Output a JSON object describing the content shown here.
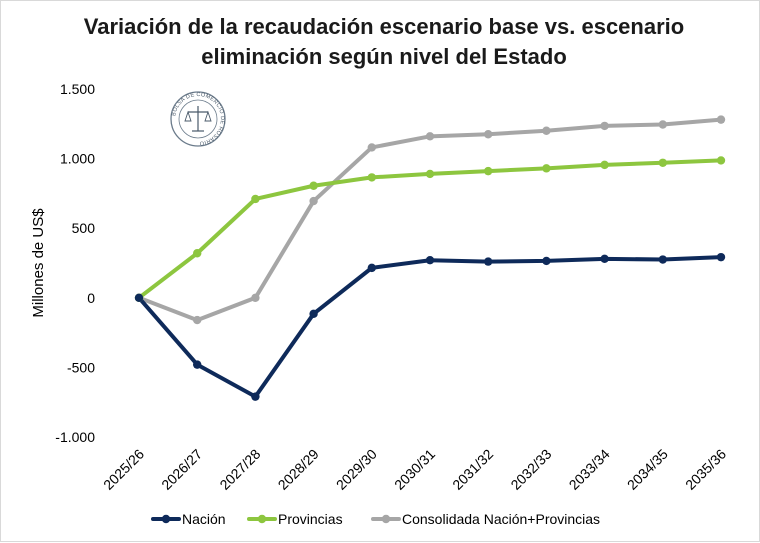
{
  "chart_data": {
    "type": "line",
    "title_lines": [
      "Variación de la recaudación escenario base vs. escenario",
      "eliminación según nivel del Estado"
    ],
    "ylabel": "Millones de US$",
    "xlabel": "",
    "ylim": [
      -1000,
      1500
    ],
    "yticks": [
      -1000,
      -500,
      0,
      500,
      1000,
      1500
    ],
    "ytick_labels": [
      "-1.000",
      "-500",
      "0",
      "500",
      "1.000",
      "1.500"
    ],
    "categories": [
      "2025/26",
      "2026/27",
      "2027/28",
      "2028/29",
      "2029/30",
      "2030/31",
      "2031/32",
      "2032/33",
      "2033/34",
      "2034/35",
      "2035/36"
    ],
    "grid": false,
    "legend_position": "bottom",
    "series": [
      {
        "name": "Nación",
        "color": "#0e2a5a",
        "values": [
          0,
          -480,
          -710,
          -115,
          215,
          270,
          260,
          265,
          280,
          275,
          292
        ]
      },
      {
        "name": "Provincias",
        "color": "#8dc63f",
        "values": [
          0,
          320,
          710,
          805,
          865,
          890,
          910,
          930,
          955,
          970,
          987
        ]
      },
      {
        "name": "Consolidada Nación+Provincias",
        "color": "#a6a6a6",
        "values": [
          0,
          -160,
          0,
          695,
          1080,
          1160,
          1175,
          1200,
          1235,
          1245,
          1280
        ]
      }
    ]
  },
  "watermark": {
    "name": "Bolsa de Comercio de Rosario seal",
    "text": "BOLSA DE COMERCIO DE ROSARIO"
  }
}
